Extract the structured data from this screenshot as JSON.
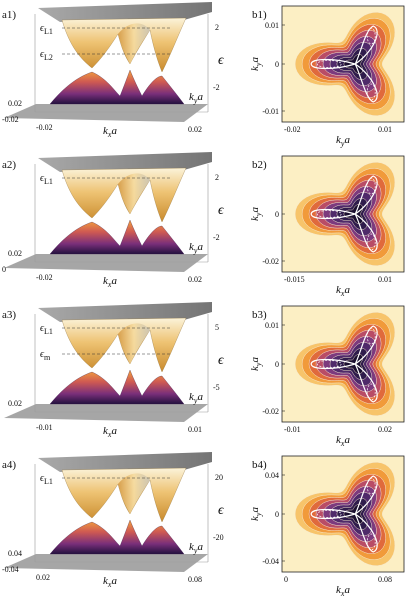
{
  "palette": {
    "band_colors": [
      "#fcefc4",
      "#f7c46a",
      "#f19a3a",
      "#e06a3c",
      "#b94c66",
      "#7c3a7e",
      "#4f2a6a",
      "#2f1c4c",
      "#1b0f30"
    ],
    "curve_white": "#ffffff"
  },
  "panels": [
    {
      "id": "a1",
      "label": "a1)",
      "energy_ticks": [
        "2",
        "-2"
      ],
      "energy_labels": [
        "ϵL1",
        "ϵL2"
      ],
      "base_ticks": {
        "ky_left": "0.02",
        "ky_left2": "-0.02",
        "kx_left": "-0.02",
        "kx_right": "0.02"
      },
      "cone_scale": 1.0
    },
    {
      "id": "a2",
      "label": "a2)",
      "energy_ticks": [
        "2",
        "-2"
      ],
      "energy_labels": [
        "ϵL1"
      ],
      "base_ticks": {
        "ky_left": "0.02",
        "ky_left2": "0",
        "kx_left": "-0.02",
        "kx_right": "0.02"
      },
      "cone_scale": 1.0
    },
    {
      "id": "a3",
      "label": "a3)",
      "energy_ticks": [
        "5",
        "-5"
      ],
      "energy_labels": [
        "ϵL1",
        "ϵm"
      ],
      "base_ticks": {
        "ky_left": "0.02",
        "ky_left2": "",
        "kx_left": "-0.01",
        "kx_right": "0.01"
      },
      "cone_scale": 1.0
    },
    {
      "id": "a4",
      "label": "a4)",
      "energy_ticks": [
        "20",
        "-20"
      ],
      "energy_labels": [
        "ϵL1"
      ],
      "base_ticks": {
        "ky_left": "0.04",
        "ky_left2": "-0.04",
        "kx_left": "0.02",
        "kx_right": "0.08"
      },
      "cone_scale": 1.0
    }
  ],
  "contour_panels": [
    {
      "id": "b1",
      "label": "b1)",
      "y_ticks": [
        "0.01",
        "0",
        "-0.01"
      ],
      "x_ticks": [
        "-0.02",
        "0.01"
      ],
      "x_label_text": "kya",
      "y_label_text": "kya"
    },
    {
      "id": "b2",
      "label": "b2)",
      "y_ticks": [
        "0",
        "-0.02"
      ],
      "x_ticks": [
        "-0.015",
        "0.01"
      ],
      "x_label_text": "kxa",
      "y_label_text": "kya"
    },
    {
      "id": "b3",
      "label": "b3)",
      "y_ticks": [
        "0.01",
        "0",
        "-0.02"
      ],
      "x_ticks": [
        "-0.01",
        "0.02"
      ],
      "x_label_text": "kxa",
      "y_label_text": "kya"
    },
    {
      "id": "b4",
      "label": "b4)",
      "y_ticks": [
        "0.04",
        "0",
        "-0.04"
      ],
      "x_ticks": [
        "0",
        "0.08"
      ],
      "x_label_text": "kxa",
      "y_label_text": "kya"
    }
  ],
  "axis_labels": {
    "kx": "kxa",
    "ky": "kya",
    "energy": "ϵ"
  }
}
